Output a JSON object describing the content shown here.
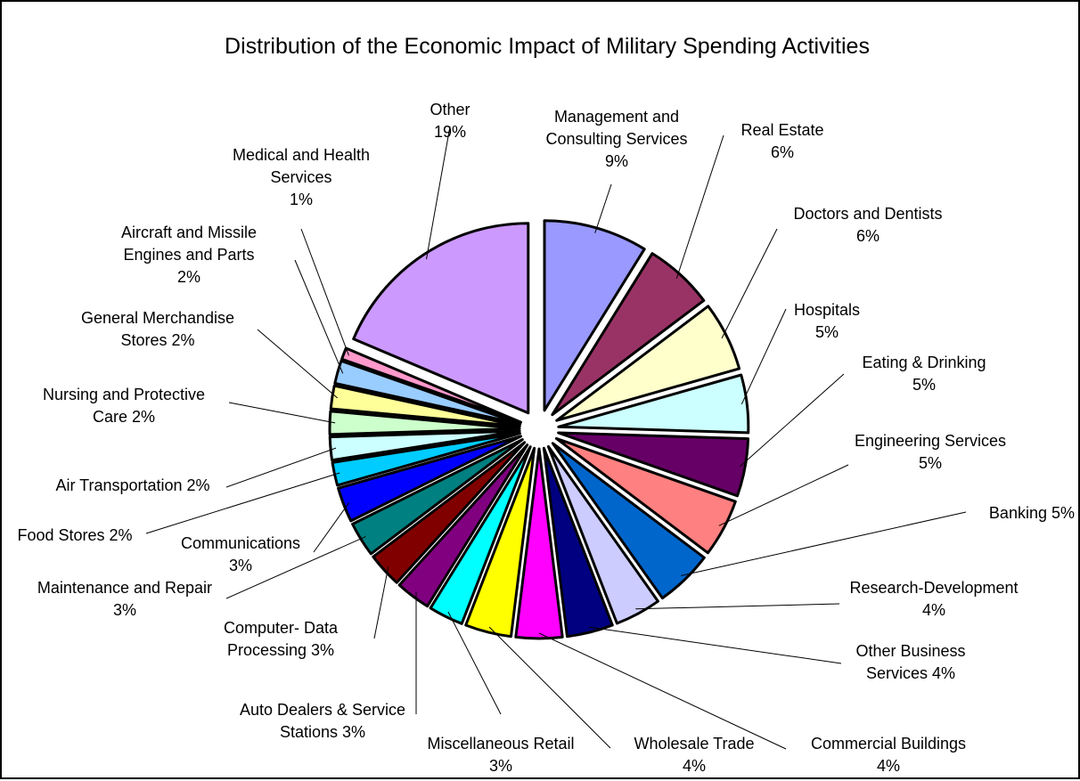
{
  "chart_data": {
    "type": "pie",
    "title": "Distribution of the Economic Impact of Military Spending Activities",
    "slices": [
      {
        "label": [
          "Management and",
          "Consulting Services",
          "9%"
        ],
        "value": 9,
        "color": "#9999ff"
      },
      {
        "label": [
          "Real Estate",
          "6%"
        ],
        "value": 6,
        "color": "#993366"
      },
      {
        "label": [
          "Doctors and Dentists",
          "6%"
        ],
        "value": 6,
        "color": "#ffffcc"
      },
      {
        "label": [
          "Hospitals",
          "5%"
        ],
        "value": 5,
        "color": "#ccffff"
      },
      {
        "label": [
          "Eating & Drinking",
          "5%"
        ],
        "value": 5,
        "color": "#660066"
      },
      {
        "label": [
          "Engineering Services",
          "5%"
        ],
        "value": 5,
        "color": "#ff8080"
      },
      {
        "label": [
          "Banking 5%"
        ],
        "value": 5,
        "color": "#0066cc"
      },
      {
        "label": [
          "Research-Development",
          "4%"
        ],
        "value": 4,
        "color": "#ccccff"
      },
      {
        "label": [
          "Other Business",
          "Services 4%"
        ],
        "value": 4,
        "color": "#000080"
      },
      {
        "label": [
          "Commercial Buildings",
          "4%"
        ],
        "value": 4,
        "color": "#ff00ff"
      },
      {
        "label": [
          "Wholesale Trade",
          "4%"
        ],
        "value": 4,
        "color": "#ffff00"
      },
      {
        "label": [
          "Miscellaneous Retail",
          "3%"
        ],
        "value": 3,
        "color": "#00ffff"
      },
      {
        "label": [
          "Auto Dealers & Service",
          "Stations 3%"
        ],
        "value": 3,
        "color": "#800080"
      },
      {
        "label": [
          "Computer- Data",
          "Processing 3%"
        ],
        "value": 3,
        "color": "#800000"
      },
      {
        "label": [
          "Maintenance and Repair",
          "3%"
        ],
        "value": 3,
        "color": "#008080"
      },
      {
        "label": [
          "Communications",
          "3%"
        ],
        "value": 3,
        "color": "#0000ff"
      },
      {
        "label": [
          "Food Stores 2%"
        ],
        "value": 2,
        "color": "#00ccff"
      },
      {
        "label": [
          "Air Transportation 2%"
        ],
        "value": 2,
        "color": "#ccffff"
      },
      {
        "label": [
          "Nursing and Protective",
          "Care 2%"
        ],
        "value": 2,
        "color": "#ccffcc"
      },
      {
        "label": [
          "General Merchandise",
          "Stores 2%"
        ],
        "value": 2,
        "color": "#ffff99"
      },
      {
        "label": [
          "Aircraft and Missile",
          "Engines and Parts",
          "2%"
        ],
        "value": 2,
        "color": "#99ccff"
      },
      {
        "label": [
          "Medical and Health",
          "Services",
          "1%"
        ],
        "value": 1,
        "color": "#ff99cc"
      },
      {
        "label": [
          "Other",
          "19%"
        ],
        "value": 19,
        "color": "#cc99ff"
      }
    ]
  }
}
